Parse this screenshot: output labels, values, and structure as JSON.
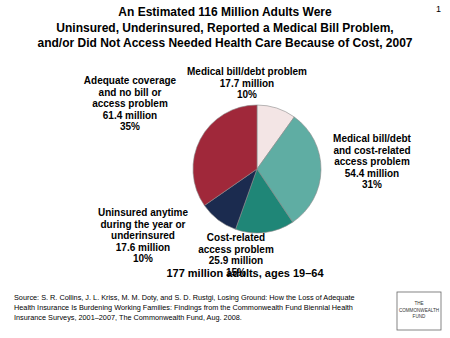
{
  "chart_data": {
    "type": "pie",
    "title": "An Estimated 116 Million Adults Were\nUninsured, Underinsured, Reported a Medical Bill Problem,\nand/or Did Not Access Needed Health Care Because of Cost, 2007",
    "categories": [
      "Medical bill/debt problem",
      "Medical bill/debt\nand cost-related\naccess problem",
      "Cost-related\naccess problem",
      "Uninsured anytime\nduring the year or\nunderinsured",
      "Adequate coverage\nand no bill or\naccess problem"
    ],
    "values": [
      10,
      31,
      15,
      10,
      35
    ],
    "value_labels": [
      "10%",
      "31%",
      "15%",
      "10%",
      "35%"
    ],
    "millions_labels": [
      "17.7 million",
      "54.4 million",
      "25.9 million",
      "17.6 million",
      "61.4 million"
    ],
    "colors": [
      "#f3e5e5",
      "#5fada3",
      "#1f8677",
      "#1b2b4f",
      "#a0283a"
    ],
    "data_labels": true,
    "annotations": {
      "page_number": "1",
      "total": "177 million adults, ages 19–64",
      "source": "Source: S. R. Collins, J. L. Kriss, M. M. Doty, and S. D. Rustgi, Losing Ground: How the Loss of Adequate\nHealth Insurance Is Burdening Working Families: Findings from the Commonwealth Fund Biennial Health\nInsurance Surveys, 2001–2007, The Commonwealth Fund, Aug. 2008.",
      "logo": "THE\nCOMMONWEALTH\nFUND"
    }
  }
}
